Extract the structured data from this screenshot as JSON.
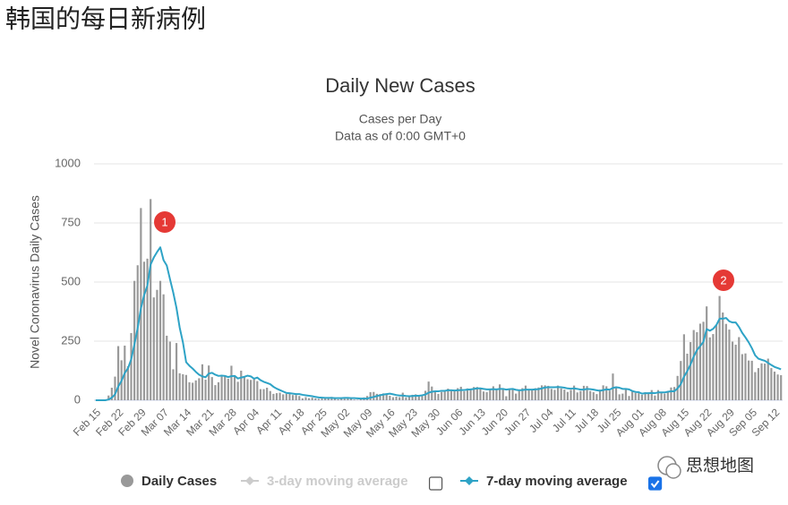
{
  "page_title": "韩国的每日新病例",
  "watermark": "思想地图",
  "chart_data": {
    "type": "bar",
    "title": "Daily New Cases",
    "subtitles": [
      "Cases per Day",
      "Data as of 0:00 GMT+0"
    ],
    "y_label": "Novel Coronavirus Daily Cases",
    "annotations": [
      "1",
      "2"
    ],
    "ylim": [
      0,
      1000
    ],
    "yticks": [
      0,
      250,
      500,
      750,
      1000
    ],
    "grid": true,
    "categories": [
      "Feb 15",
      null,
      null,
      null,
      null,
      null,
      null,
      "Feb 22",
      null,
      null,
      null,
      null,
      null,
      null,
      "Feb 29",
      null,
      null,
      null,
      null,
      null,
      null,
      "Mar 07",
      null,
      null,
      null,
      null,
      null,
      null,
      "Mar 14",
      null,
      null,
      null,
      null,
      null,
      null,
      "Mar 21",
      null,
      null,
      null,
      null,
      null,
      null,
      "Mar 28",
      null,
      null,
      null,
      null,
      null,
      null,
      "Apr 04",
      null,
      null,
      null,
      null,
      null,
      null,
      "Apr 11",
      null,
      null,
      null,
      null,
      null,
      null,
      "Apr 18",
      null,
      null,
      null,
      null,
      null,
      null,
      "Apr 25",
      null,
      null,
      null,
      null,
      null,
      null,
      "May 02",
      null,
      null,
      null,
      null,
      null,
      null,
      "May 09",
      null,
      null,
      null,
      null,
      null,
      null,
      "May 16",
      null,
      null,
      null,
      null,
      null,
      null,
      "May 23",
      null,
      null,
      null,
      null,
      null,
      null,
      "May 30",
      null,
      null,
      null,
      null,
      null,
      null,
      "Jun 06",
      null,
      null,
      null,
      null,
      null,
      null,
      "Jun 13",
      null,
      null,
      null,
      null,
      null,
      null,
      "Jun 20",
      null,
      null,
      null,
      null,
      null,
      null,
      "Jun 27",
      null,
      null,
      null,
      null,
      null,
      null,
      "Jul 04",
      null,
      null,
      null,
      null,
      null,
      null,
      "Jul 11",
      null,
      null,
      null,
      null,
      null,
      null,
      "Jul 18",
      null,
      null,
      null,
      null,
      null,
      null,
      "Jul 25",
      null,
      null,
      null,
      null,
      null,
      null,
      "Aug 01",
      null,
      null,
      null,
      null,
      null,
      null,
      "Aug 08",
      null,
      null,
      null,
      null,
      null,
      null,
      "Aug 15",
      null,
      null,
      null,
      null,
      null,
      null,
      "Aug 22",
      null,
      null,
      null,
      null,
      null,
      null,
      "Aug 29",
      null,
      null,
      null,
      null,
      null,
      null,
      "Sep 05",
      null,
      null,
      null,
      null,
      null,
      null,
      "Sep 12",
      null,
      null
    ],
    "series": [
      {
        "name": "Daily Cases",
        "type": "bar",
        "color": "#999999",
        "values": [
          0,
          0,
          1,
          1,
          20,
          53,
          100,
          229,
          169,
          231,
          144,
          284,
          505,
          571,
          813,
          586,
          599,
          851,
          435,
          467,
          505,
          448,
          273,
          248,
          131,
          242,
          114,
          110,
          107,
          76,
          74,
          84,
          93,
          152,
          87,
          147,
          98,
          64,
          76,
          100,
          104,
          91,
          146,
          105,
          78,
          125,
          101,
          89,
          86,
          94,
          81,
          47,
          47,
          53,
          39,
          27,
          30,
          32,
          25,
          27,
          27,
          22,
          22,
          18,
          8,
          13,
          9,
          11,
          8,
          6,
          10,
          10,
          10,
          14,
          9,
          4,
          9,
          6,
          13,
          8,
          3,
          2,
          4,
          12,
          18,
          34,
          35,
          27,
          26,
          29,
          27,
          19,
          13,
          15,
          13,
          32,
          12,
          20,
          23,
          25,
          16,
          19,
          40,
          79,
          58,
          39,
          27,
          35,
          38,
          49,
          39,
          39,
          51,
          57,
          38,
          50,
          45,
          56,
          56,
          49,
          37,
          34,
          43,
          59,
          49,
          67,
          48,
          17,
          46,
          51,
          28,
          39,
          51,
          62,
          42,
          43,
          51,
          54,
          63,
          63,
          61,
          48,
          44,
          62,
          50,
          45,
          35,
          44,
          62,
          33,
          39,
          61,
          60,
          39,
          34,
          26,
          45,
          63,
          59,
          41,
          113,
          58,
          25,
          28,
          48,
          18,
          36,
          31,
          30,
          23,
          34,
          33,
          43,
          20,
          43,
          36,
          28,
          34,
          54,
          56,
          103,
          166,
          279,
          197,
          246,
          297,
          288,
          324,
          332,
          397,
          266,
          280,
          320,
          441,
          371,
          323,
          299,
          248,
          235,
          267,
          195,
          198,
          168,
          167,
          119,
          136,
          156,
          155,
          176,
          136,
          121,
          109,
          106
        ]
      },
      {
        "name": "3-day moving average",
        "type": "line",
        "color": "#cccccc",
        "visible": false,
        "checked": false
      },
      {
        "name": "7-day moving average",
        "type": "line",
        "color": "#2ea3c6",
        "visible": true,
        "checked": true,
        "values": [
          0,
          0,
          0,
          0,
          3,
          11,
          25,
          58,
          82,
          115,
          135,
          173,
          237,
          305,
          388,
          445,
          485,
          574,
          604,
          627,
          647,
          593,
          570,
          512,
          456,
          391,
          307,
          245,
          161,
          146,
          134,
          120,
          108,
          101,
          97,
          113,
          116,
          108,
          103,
          104,
          103,
          98,
          102,
          103,
          92,
          96,
          99,
          104,
          101,
          91,
          96,
          85,
          78,
          73,
          68,
          57,
          49,
          43,
          37,
          31,
          30,
          28,
          26,
          26,
          23,
          21,
          19,
          17,
          14,
          12,
          11,
          10,
          10,
          10,
          9,
          9,
          9,
          10,
          10,
          9,
          9,
          8,
          7,
          7,
          7,
          11,
          14,
          18,
          21,
          24,
          26,
          28,
          25,
          22,
          20,
          20,
          18,
          17,
          18,
          19,
          19,
          21,
          24,
          32,
          36,
          38,
          38,
          40,
          40,
          42,
          42,
          41,
          42,
          43,
          43,
          45,
          46,
          48,
          50,
          50,
          48,
          46,
          46,
          47,
          46,
          48,
          48,
          45,
          47,
          48,
          44,
          42,
          43,
          45,
          45,
          45,
          46,
          47,
          50,
          54,
          55,
          55,
          55,
          56,
          55,
          53,
          50,
          49,
          50,
          48,
          45,
          45,
          48,
          47,
          45,
          42,
          40,
          43,
          46,
          45,
          52,
          55,
          53,
          48,
          48,
          46,
          39,
          35,
          34,
          28,
          30,
          30,
          31,
          30,
          33,
          33,
          33,
          36,
          38,
          38,
          50,
          68,
          100,
          123,
          151,
          185,
          212,
          229,
          247,
          301,
          294,
          302,
          318,
          345,
          345,
          348,
          334,
          329,
          329,
          310,
          285,
          266,
          245,
          220,
          190,
          176,
          171,
          167,
          158,
          149,
          141,
          136,
          131
        ]
      }
    ]
  }
}
